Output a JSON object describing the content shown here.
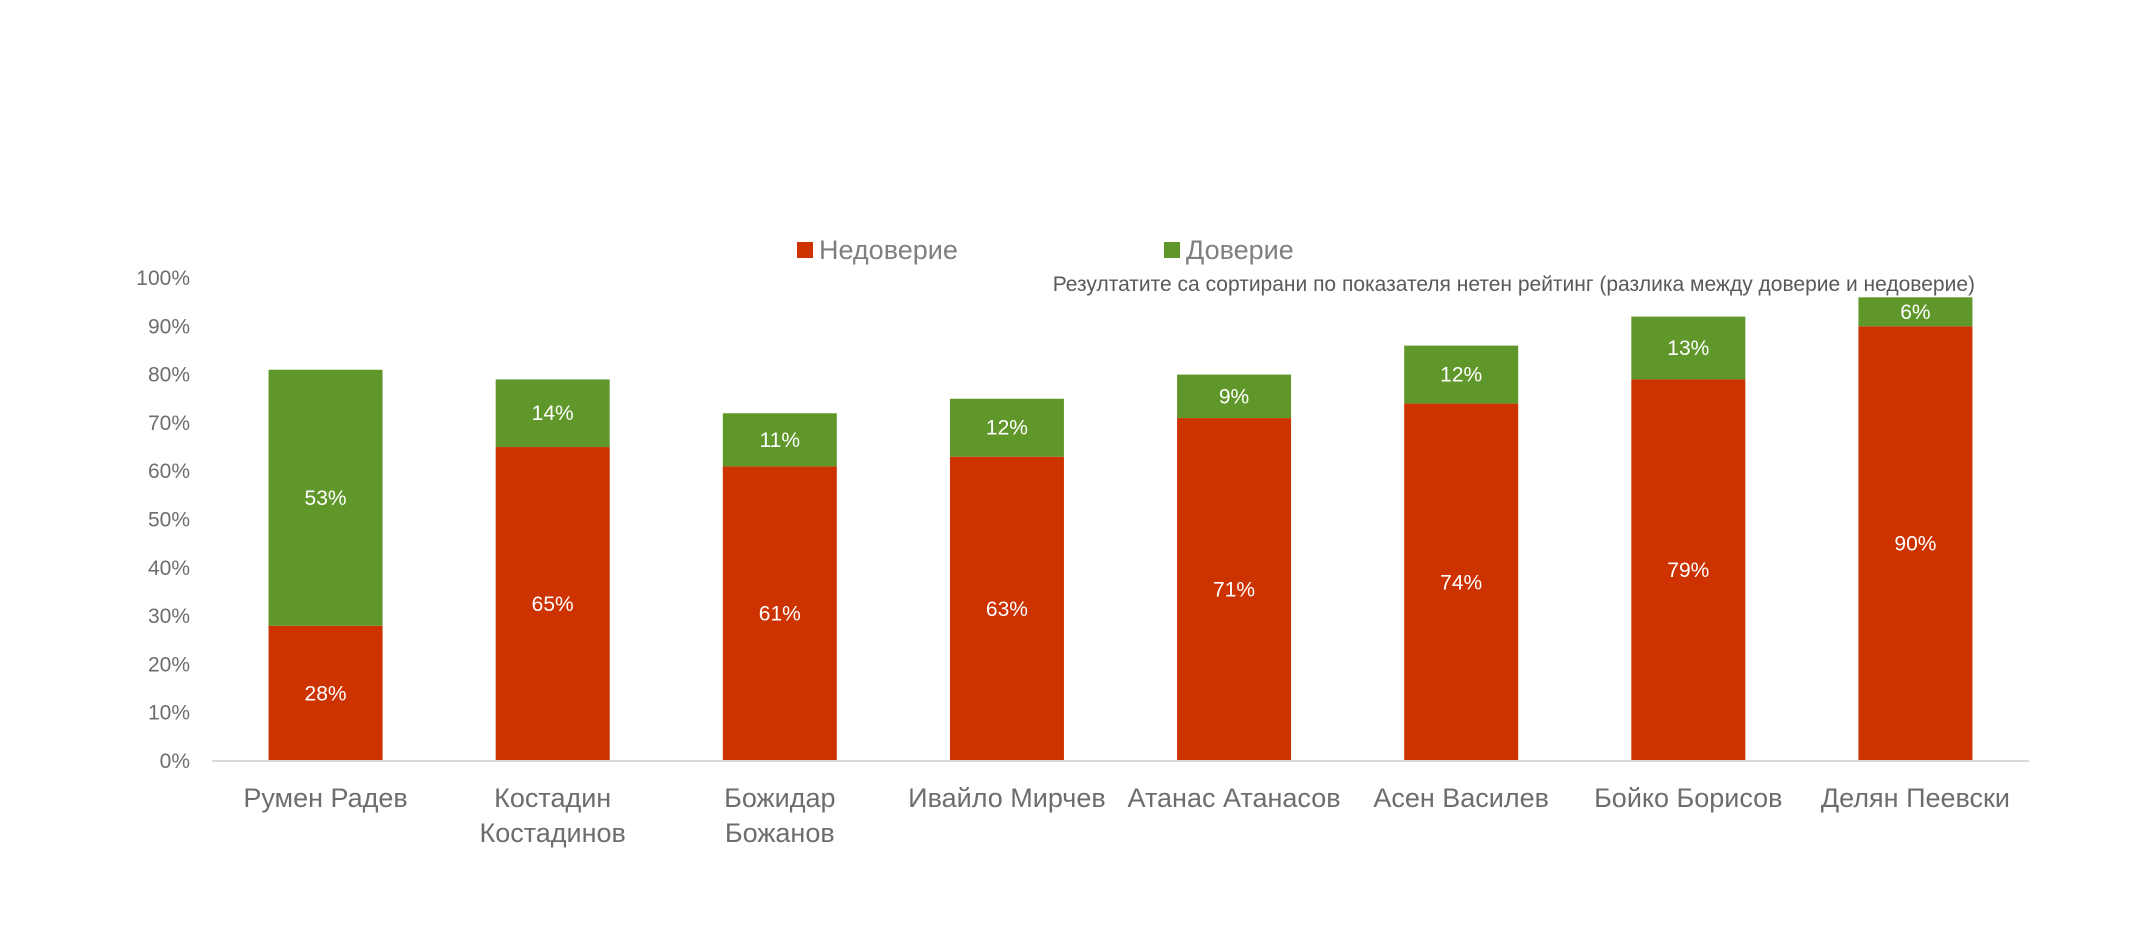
{
  "chart_data": {
    "type": "bar",
    "stacked": true,
    "categories": [
      "Румен Радев",
      "Костадин Костадинов",
      "Божидар Божанов",
      "Ивайло Мирчев",
      "Атанас Атанасов",
      "Асен Василев",
      "Бойко Борисов",
      "Делян Пеевски"
    ],
    "category_lines": [
      [
        "Румен Радев"
      ],
      [
        "Костадин",
        "Костадинов"
      ],
      [
        "Божидар",
        "Божанов"
      ],
      [
        "Ивайло Мирчев"
      ],
      [
        "Атанас Атанасов"
      ],
      [
        "Асен Василев"
      ],
      [
        "Бойко Борисов"
      ],
      [
        "Делян Пеевски"
      ]
    ],
    "series": [
      {
        "name": "Недоверие",
        "color": "#cc3300",
        "values": [
          28,
          65,
          61,
          63,
          71,
          74,
          79,
          90
        ]
      },
      {
        "name": "Доверие",
        "color": "#60972a",
        "values": [
          53,
          14,
          11,
          12,
          9,
          12,
          13,
          6
        ]
      }
    ],
    "data_labels": [
      [
        "28%",
        "65%",
        "61%",
        "63%",
        "71%",
        "74%",
        "79%",
        "90%"
      ],
      [
        "53%",
        "14%",
        "11%",
        "12%",
        "9%",
        "12%",
        "13%",
        "6%"
      ]
    ],
    "yticks": [
      "0%",
      "10%",
      "20%",
      "30%",
      "40%",
      "50%",
      "60%",
      "70%",
      "80%",
      "90%",
      "100%"
    ],
    "ylim": [
      0,
      100
    ],
    "legend_position": "top",
    "note": "Резултатите са сортирани по показателя нетен рейтинг (разлика между доверие и недоверие)",
    "grid": false
  }
}
